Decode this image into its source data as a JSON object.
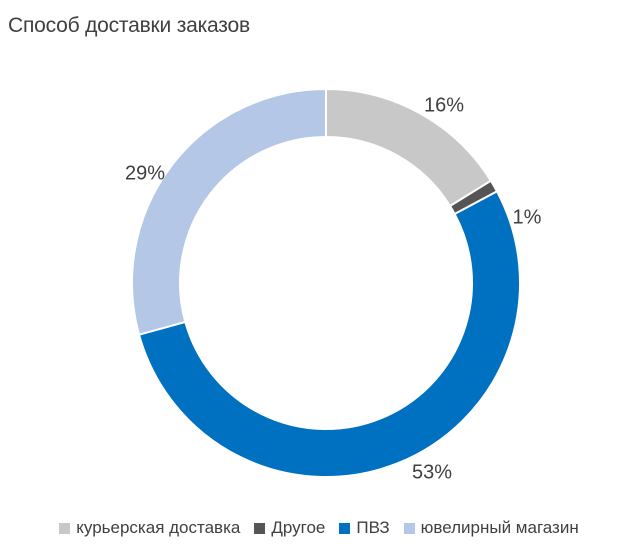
{
  "chart_data": {
    "type": "pie",
    "variant": "donut",
    "title": "Способ доставки заказов",
    "categories": [
      "курьерская доставка",
      "Другое",
      "ПВЗ",
      "ювелирный магазин"
    ],
    "values": [
      16,
      1,
      53,
      29
    ],
    "labels": [
      "16%",
      "1%",
      "53%",
      "29%"
    ],
    "colors": [
      "#c8c8c8",
      "#555555",
      "#0070c0",
      "#b4c7e7"
    ],
    "legend_position": "bottom"
  }
}
